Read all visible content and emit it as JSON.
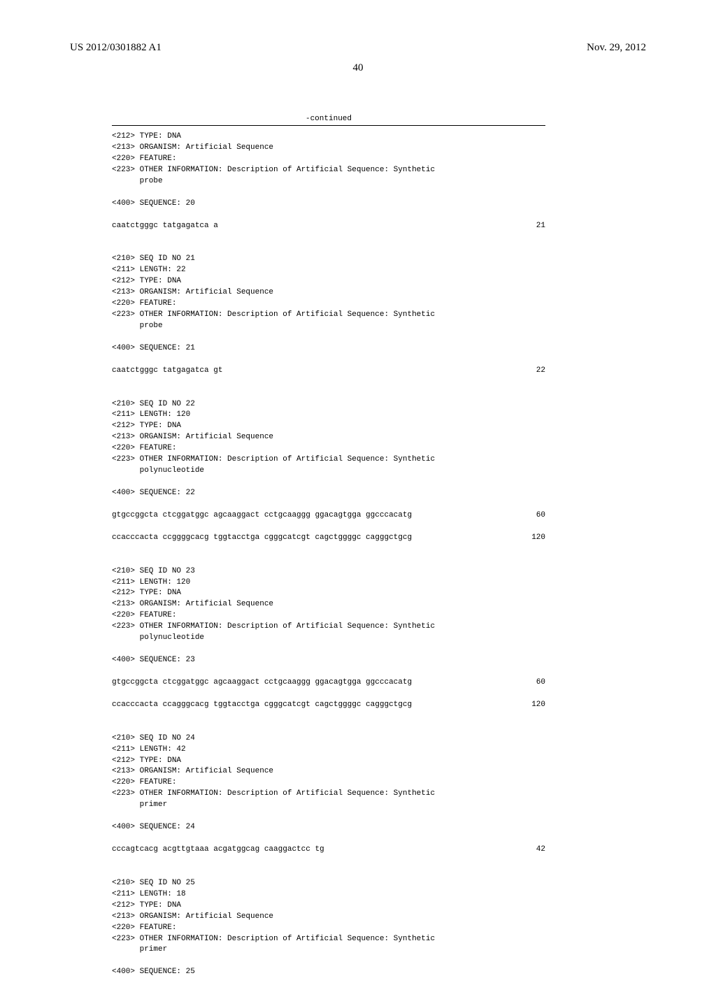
{
  "header": {
    "pub_number": "US 2012/0301882 A1",
    "pub_date": "Nov. 29, 2012"
  },
  "page_number": "40",
  "continued_label": "-continued",
  "entries": [
    {
      "lines": [
        "<212> TYPE: DNA",
        "<213> ORGANISM: Artificial Sequence",
        "<220> FEATURE:",
        "<223> OTHER INFORMATION: Description of Artificial Sequence: Synthetic",
        "      probe",
        "",
        "<400> SEQUENCE: 20"
      ],
      "seq_rows": [
        {
          "text": "caatctgggc tatgagatca a",
          "num": "21"
        }
      ]
    },
    {
      "lines": [
        "<210> SEQ ID NO 21",
        "<211> LENGTH: 22",
        "<212> TYPE: DNA",
        "<213> ORGANISM: Artificial Sequence",
        "<220> FEATURE:",
        "<223> OTHER INFORMATION: Description of Artificial Sequence: Synthetic",
        "      probe",
        "",
        "<400> SEQUENCE: 21"
      ],
      "seq_rows": [
        {
          "text": "caatctgggc tatgagatca gt",
          "num": "22"
        }
      ]
    },
    {
      "lines": [
        "<210> SEQ ID NO 22",
        "<211> LENGTH: 120",
        "<212> TYPE: DNA",
        "<213> ORGANISM: Artificial Sequence",
        "<220> FEATURE:",
        "<223> OTHER INFORMATION: Description of Artificial Sequence: Synthetic",
        "      polynucleotide",
        "",
        "<400> SEQUENCE: 22"
      ],
      "seq_rows": [
        {
          "text": "gtgccggcta ctcggatggc agcaaggact cctgcaaggg ggacagtgga ggcccacatg",
          "num": "60"
        },
        {
          "text": "ccacccacta ccggggcacg tggtacctga cgggcatcgt cagctggggc cagggctgcg",
          "num": "120"
        }
      ]
    },
    {
      "lines": [
        "<210> SEQ ID NO 23",
        "<211> LENGTH: 120",
        "<212> TYPE: DNA",
        "<213> ORGANISM: Artificial Sequence",
        "<220> FEATURE:",
        "<223> OTHER INFORMATION: Description of Artificial Sequence: Synthetic",
        "      polynucleotide",
        "",
        "<400> SEQUENCE: 23"
      ],
      "seq_rows": [
        {
          "text": "gtgccggcta ctcggatggc agcaaggact cctgcaaggg ggacagtgga ggcccacatg",
          "num": "60"
        },
        {
          "text": "ccacccacta ccagggcacg tggtacctga cgggcatcgt cagctggggc cagggctgcg",
          "num": "120"
        }
      ]
    },
    {
      "lines": [
        "<210> SEQ ID NO 24",
        "<211> LENGTH: 42",
        "<212> TYPE: DNA",
        "<213> ORGANISM: Artificial Sequence",
        "<220> FEATURE:",
        "<223> OTHER INFORMATION: Description of Artificial Sequence: Synthetic",
        "      primer",
        "",
        "<400> SEQUENCE: 24"
      ],
      "seq_rows": [
        {
          "text": "cccagtcacg acgttgtaaa acgatggcag caaggactcc tg",
          "num": "42"
        }
      ]
    },
    {
      "lines": [
        "<210> SEQ ID NO 25",
        "<211> LENGTH: 18",
        "<212> TYPE: DNA",
        "<213> ORGANISM: Artificial Sequence",
        "<220> FEATURE:",
        "<223> OTHER INFORMATION: Description of Artificial Sequence: Synthetic",
        "      primer",
        "",
        "<400> SEQUENCE: 25"
      ],
      "seq_rows": []
    }
  ]
}
